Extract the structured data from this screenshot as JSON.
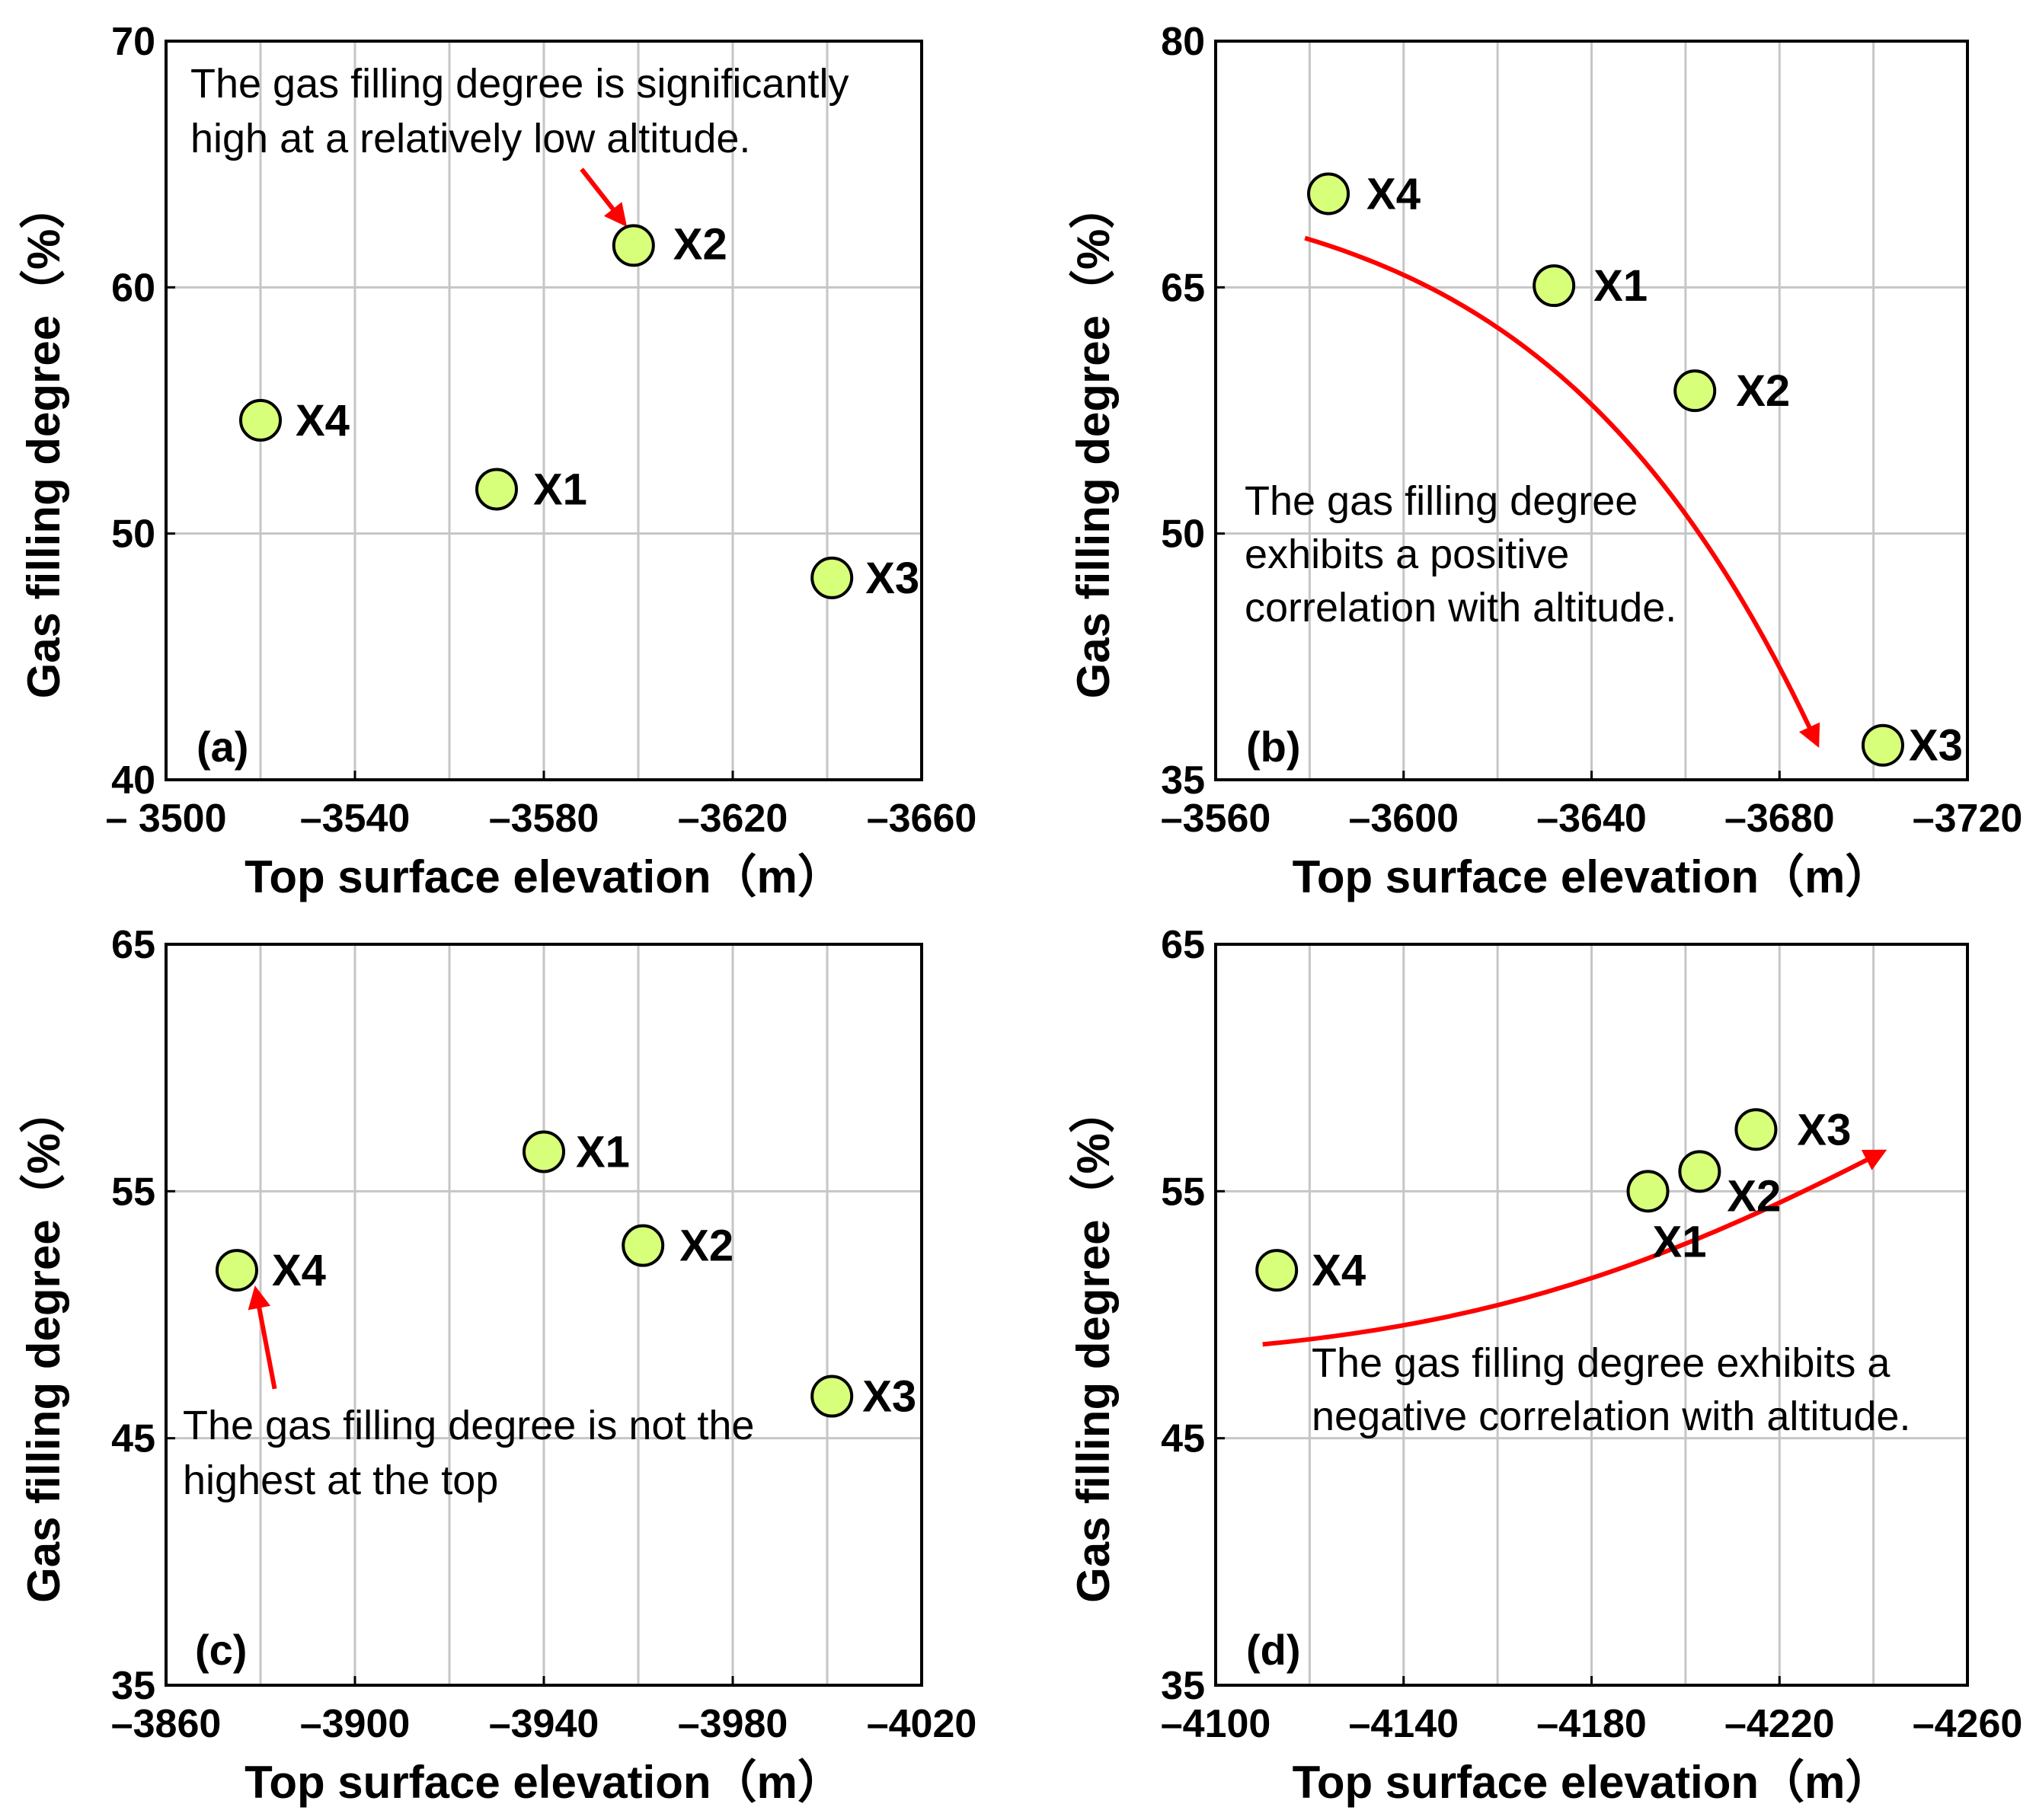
{
  "figure": {
    "background": "#ffffff",
    "point_fill": "#d8ff7a",
    "arrow_color": "#ff0000"
  },
  "chart_data": [
    {
      "panel": "(a)",
      "type": "scatter",
      "xlabel": "Top surface elevation（m）",
      "ylabel": "Gas filling degree（%）",
      "xlim": [
        -3500,
        -3660
      ],
      "ylim": [
        40,
        70
      ],
      "xticks": [
        -3500,
        -3540,
        -3580,
        -3620,
        -3660
      ],
      "xtick_labels": [
        "– 3500",
        "–3540",
        "–3580",
        "–3620",
        "–3660"
      ],
      "xgrid": [
        -3520,
        -3540,
        -3560,
        -3580,
        -3600,
        -3620,
        -3640
      ],
      "yticks": [
        40,
        50,
        60,
        70
      ],
      "ytick_labels": [
        "40",
        "50",
        "60",
        "70"
      ],
      "ygrid": [
        50,
        60
      ],
      "grid": true,
      "points": [
        {
          "label": "X1",
          "x": -3570,
          "y": 51.8
        },
        {
          "label": "X2",
          "x": -3599,
          "y": 61.7
        },
        {
          "label": "X3",
          "x": -3641,
          "y": 48.2
        },
        {
          "label": "X4",
          "x": -3520,
          "y": 54.6
        }
      ],
      "annotation": [
        "The  gas  filling  degree  is significantly",
        "high  at a relatively   low  altitude."
      ],
      "arrow": {
        "type": "straight",
        "from": [
          -3588,
          64.8
        ],
        "to": [
          -3597,
          62.6
        ]
      }
    },
    {
      "panel": "(b)",
      "type": "scatter",
      "xlabel": "Top surface elevation（m）",
      "ylabel": "Gas filling degree（%）",
      "xlim": [
        -3560,
        -3720
      ],
      "ylim": [
        35,
        80
      ],
      "xticks": [
        -3560,
        -3600,
        -3640,
        -3680,
        -3720
      ],
      "xtick_labels": [
        "–3560",
        "–3600",
        "–3640",
        "–3680",
        "–3720"
      ],
      "xgrid": [
        -3580,
        -3600,
        -3620,
        -3640,
        -3660,
        -3680,
        -3700
      ],
      "yticks": [
        35,
        50,
        65,
        80
      ],
      "ytick_labels": [
        "35",
        "50",
        "65",
        "80"
      ],
      "ygrid": [
        50,
        65
      ],
      "grid": true,
      "points": [
        {
          "label": "X1",
          "x": -3632,
          "y": 65.1
        },
        {
          "label": "X2",
          "x": -3662,
          "y": 58.7
        },
        {
          "label": "X3",
          "x": -3702,
          "y": 37.1
        },
        {
          "label": "X4",
          "x": -3584,
          "y": 70.7
        }
      ],
      "annotation": [
        "The  gas  filling  degree",
        "exhibits  a positive",
        "correlation  with  altitude."
      ],
      "arrow": {
        "type": "curve",
        "points": [
          [
            -3579,
            68.0
          ],
          [
            -3620,
            64.5
          ],
          [
            -3656,
            57.0
          ],
          [
            -3688,
            37.2
          ]
        ]
      }
    },
    {
      "panel": "(c)",
      "type": "scatter",
      "xlabel": "Top surface elevation（m）",
      "ylabel": "Gas filling degree（%）",
      "xlim": [
        -3860,
        -4020
      ],
      "ylim": [
        35,
        65
      ],
      "xticks": [
        -3860,
        -3900,
        -3940,
        -3980,
        -4020
      ],
      "xtick_labels": [
        "–3860",
        "–3900",
        "–3940",
        "–3980",
        "–4020"
      ],
      "xgrid": [
        -3880,
        -3900,
        -3920,
        -3940,
        -3960,
        -3980,
        -4000
      ],
      "yticks": [
        35,
        45,
        55,
        65
      ],
      "ytick_labels": [
        "35",
        "45",
        "55",
        "65"
      ],
      "ygrid": [
        45,
        55
      ],
      "grid": true,
      "points": [
        {
          "label": "X1",
          "x": -3940,
          "y": 56.6
        },
        {
          "label": "X2",
          "x": -3961,
          "y": 52.8
        },
        {
          "label": "X3",
          "x": -4001,
          "y": 46.7
        },
        {
          "label": "X4",
          "x": -3875,
          "y": 51.8
        }
      ],
      "annotation": [
        "The  gas  filling  degree  is not  the",
        "highest  at  the  top"
      ],
      "arrow": {
        "type": "straight",
        "from": [
          -3883,
          47.0
        ],
        "to": [
          -3879,
          51.0
        ]
      }
    },
    {
      "panel": "(d)",
      "type": "scatter",
      "xlabel": "Top surface elevation（m）",
      "ylabel": "Gas filling degree（%）",
      "xlim": [
        -4100,
        -4260
      ],
      "ylim": [
        35,
        65
      ],
      "xticks": [
        -4100,
        -4140,
        -4180,
        -4220,
        -4260
      ],
      "xtick_labels": [
        "–4100",
        "–4140",
        "–4180",
        "–4220",
        "–4260"
      ],
      "xgrid": [
        -4120,
        -4140,
        -4160,
        -4180,
        -4200,
        -4220,
        -4240
      ],
      "yticks": [
        35,
        45,
        55,
        65
      ],
      "ytick_labels": [
        "35",
        "45",
        "55",
        "65"
      ],
      "ygrid": [
        45,
        55
      ],
      "grid": true,
      "points": [
        {
          "label": "X1",
          "x": -4192,
          "y": 55.0
        },
        {
          "label": "X2",
          "x": -4203,
          "y": 55.8
        },
        {
          "label": "X3",
          "x": -4215,
          "y": 57.5
        },
        {
          "label": "X4",
          "x": -4113,
          "y": 51.8
        }
      ],
      "annotation": [
        "The  gas  filling  degree  exhibits  a",
        "negative  correlation  with  altitude."
      ],
      "arrow": {
        "type": "curve",
        "points": [
          [
            -4110,
            48.8
          ],
          [
            -4165,
            49.8
          ],
          [
            -4200,
            52.5
          ],
          [
            -4242,
            56.6
          ]
        ]
      }
    }
  ]
}
